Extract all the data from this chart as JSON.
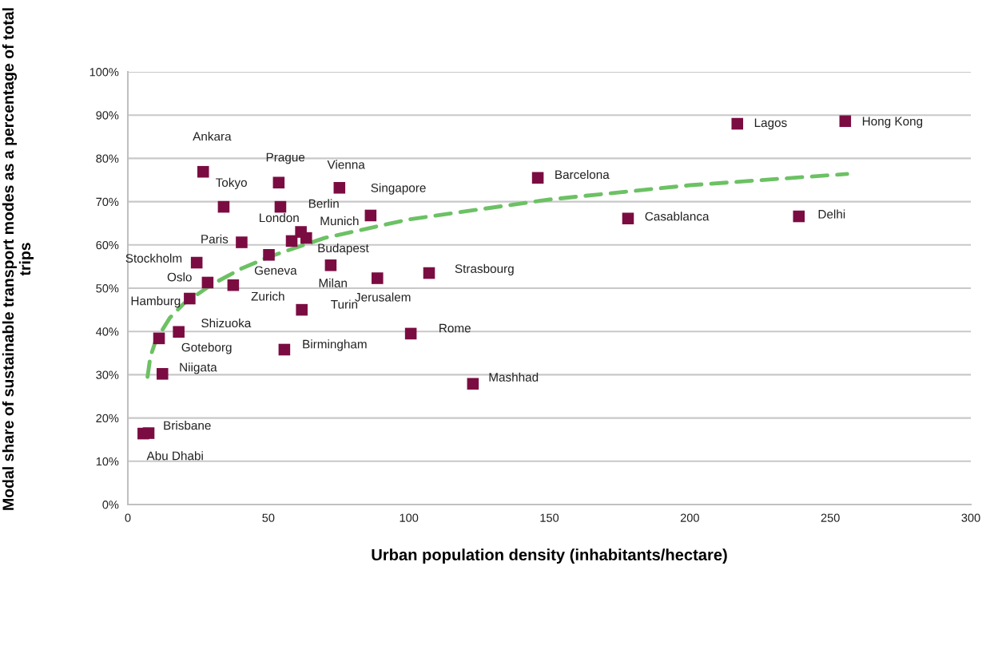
{
  "chart_data": {
    "type": "scatter",
    "xlabel": "Urban population density (inhabitants/hectare)",
    "ylabel": "Modal share of sustainable transport modes as a percentage of total trips",
    "xlim": [
      0,
      300
    ],
    "xticks": [
      0,
      50,
      100,
      150,
      200,
      250,
      300
    ],
    "ylim": [
      0,
      100
    ],
    "yticks": [
      {
        "value": 0,
        "label": "0%"
      },
      {
        "value": 10,
        "label": "10%"
      },
      {
        "value": 20,
        "label": "20%"
      },
      {
        "value": 30,
        "label": "30%"
      },
      {
        "value": 40,
        "label": "40%"
      },
      {
        "value": 50,
        "label": "50%"
      },
      {
        "value": 60,
        "label": "60%"
      },
      {
        "value": 70,
        "label": "70%"
      },
      {
        "value": 80,
        "label": "80%"
      },
      {
        "value": 90,
        "label": "90%"
      },
      {
        "value": 100,
        "label": "100%"
      }
    ],
    "grid": "y",
    "legend": false,
    "series": [
      {
        "color": "#7b0c42",
        "marker": "square",
        "x": [
          26.8,
          53.7,
          75.3,
          34.1,
          54.3,
          86.4,
          58.3,
          61.6,
          63.5,
          40.5,
          50.2,
          24.5,
          72.2,
          88.8,
          107.2,
          28.4,
          37.5,
          22.0,
          61.9,
          18.1,
          11.1,
          100.7,
          55.7,
          12.3,
          122.8,
          7.4,
          5.5,
          145.9,
          178.0,
          238.8,
          216.9,
          255.3
        ],
        "values": [
          76.9,
          74.4,
          73.2,
          68.8,
          68.8,
          66.8,
          60.9,
          63.0,
          61.6,
          60.6,
          57.7,
          55.9,
          55.3,
          52.3,
          53.5,
          51.3,
          50.7,
          47.6,
          45.0,
          39.9,
          38.4,
          39.5,
          35.8,
          30.2,
          27.9,
          16.5,
          16.4,
          75.5,
          66.1,
          66.6,
          88.0,
          88.6
        ]
      },
      {
        "type": "line",
        "color": "#6cc164",
        "line_style": "dashed",
        "marker": "none",
        "x": [
          7,
          8,
          10,
          15,
          20,
          30,
          40,
          50,
          70,
          100,
          150,
          200,
          256
        ],
        "values": [
          29.5,
          34.1,
          38.0,
          43.2,
          46.5,
          50.9,
          54.4,
          57.2,
          61.6,
          65.9,
          70.5,
          73.8,
          76.4
        ]
      }
    ],
    "annotations": [
      {
        "text": "Ankara",
        "x": 26.8,
        "y": 76.9
      },
      {
        "text": "Prague",
        "x": 53.7,
        "y": 74.4
      },
      {
        "text": "Vienna",
        "x": 75.3,
        "y": 73.2
      },
      {
        "text": "Tokyo",
        "x": 34.1,
        "y": 68.8
      },
      {
        "text": "Berlin",
        "x": 54.3,
        "y": 68.8
      },
      {
        "text": "Singapore",
        "x": 86.4,
        "y": 66.8
      },
      {
        "text": "London",
        "x": 58.3,
        "y": 60.9
      },
      {
        "text": "Munich",
        "x": 61.6,
        "y": 63.0
      },
      {
        "text": "Budapest",
        "x": 63.5,
        "y": 61.6
      },
      {
        "text": "Paris",
        "x": 40.5,
        "y": 60.6
      },
      {
        "text": "Geneva",
        "x": 50.2,
        "y": 57.7
      },
      {
        "text": "Stockholm",
        "x": 24.5,
        "y": 55.9
      },
      {
        "text": "Milan",
        "x": 72.2,
        "y": 55.3
      },
      {
        "text": "Jerusalem",
        "x": 88.8,
        "y": 52.3
      },
      {
        "text": "Strasbourg",
        "x": 107.2,
        "y": 53.5
      },
      {
        "text": "Oslo",
        "x": 28.4,
        "y": 51.3
      },
      {
        "text": "Zurich",
        "x": 37.5,
        "y": 50.7
      },
      {
        "text": "Hamburg",
        "x": 22.0,
        "y": 47.6
      },
      {
        "text": "Turin",
        "x": 61.9,
        "y": 45.0
      },
      {
        "text": "Shizuoka",
        "x": 18.1,
        "y": 39.9
      },
      {
        "text": "Goteborg",
        "x": 11.1,
        "y": 38.4
      },
      {
        "text": "Rome",
        "x": 100.7,
        "y": 39.5
      },
      {
        "text": "Birmingham",
        "x": 55.7,
        "y": 35.8
      },
      {
        "text": "Niigata",
        "x": 12.3,
        "y": 30.2
      },
      {
        "text": "Mashhad",
        "x": 122.8,
        "y": 27.9
      },
      {
        "text": "Brisbane",
        "x": 7.4,
        "y": 16.5
      },
      {
        "text": "Abu Dhabi",
        "x": 5.5,
        "y": 16.4
      },
      {
        "text": "Barcelona",
        "x": 145.9,
        "y": 75.5
      },
      {
        "text": "Casablanca",
        "x": 178.0,
        "y": 66.1
      },
      {
        "text": "Delhi",
        "x": 238.8,
        "y": 66.6
      },
      {
        "text": "Lagos",
        "x": 216.9,
        "y": 88.0
      },
      {
        "text": "Hong Kong",
        "x": 255.3,
        "y": 88.6
      }
    ]
  }
}
